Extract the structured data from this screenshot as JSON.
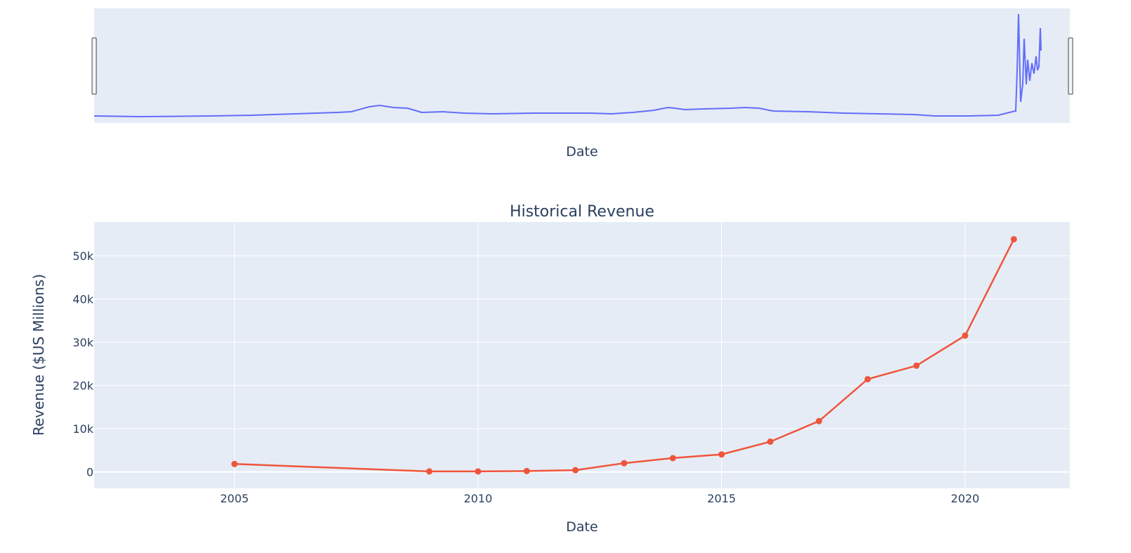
{
  "colors": {
    "plot_background": "#e5ecf6",
    "grid": "#ffffff",
    "text": "#2a3f5f",
    "rangeslider_line": "#636efa",
    "revenue_line": "#ef553b",
    "handle_fill": "#f2f5fa",
    "handle_stroke": "#444444"
  },
  "rangeslider": {
    "xlabel": "Date"
  },
  "chart_data": {
    "type": "line",
    "title": "Historical Revenue",
    "xlabel": "Date",
    "ylabel": "Revenue ($US Millions)",
    "xlim": [
      2002.12,
      2022.15
    ],
    "ylim": [
      -3800,
      57800
    ],
    "x_ticks": [
      "2005",
      "2010",
      "2015",
      "2020"
    ],
    "y_ticks": [
      "0",
      "10k",
      "20k",
      "30k",
      "40k",
      "50k"
    ],
    "y_tick_values": [
      0,
      10000,
      20000,
      30000,
      40000,
      50000
    ],
    "x_tick_values": [
      2005,
      2010,
      2015,
      2020
    ],
    "grid": true,
    "series": [
      {
        "mode": "lines+markers",
        "x": [
          2005,
          2009,
          2010,
          2011,
          2012,
          2013,
          2014,
          2015,
          2016,
          2017,
          2018,
          2019,
          2020,
          2021
        ],
        "values": [
          1843,
          112,
          117,
          204,
          413,
          2013,
          3198,
          4046,
          7000,
          11759,
          21461,
          24578,
          31536,
          53823
        ]
      }
    ]
  }
}
